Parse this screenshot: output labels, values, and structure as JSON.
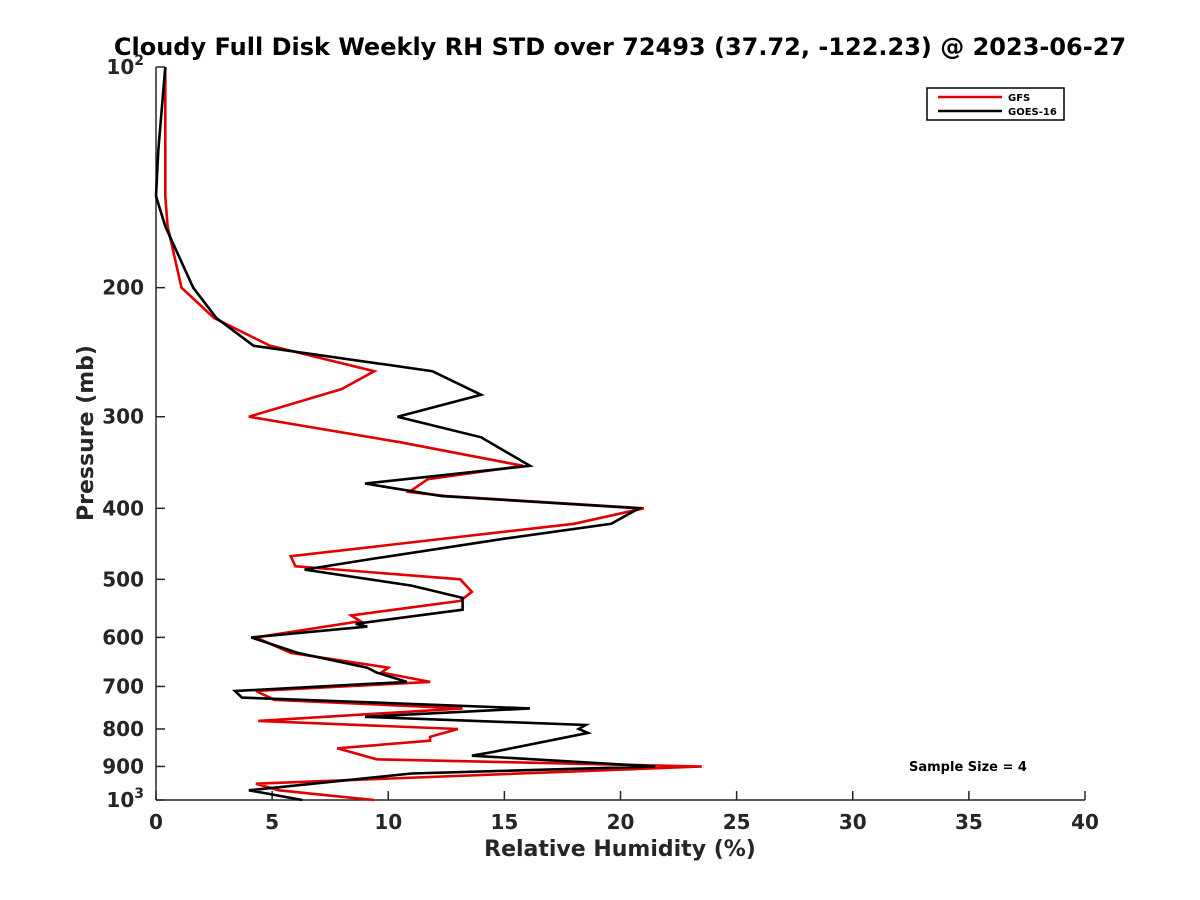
{
  "chart_data": {
    "type": "line",
    "title": "Cloudy Full Disk Weekly RH STD over 72493 (37.72, -122.23) @ 2023-06-27",
    "xlabel": "Relative Humidity (%)",
    "ylabel": "Pressure (mb)",
    "xlim": [
      0,
      40
    ],
    "ylim": [
      100,
      1000
    ],
    "y_scale": "log",
    "y_reversed": true,
    "x_ticks": [
      0,
      5,
      10,
      15,
      20,
      25,
      30,
      35,
      40
    ],
    "y_ticks": [
      {
        "value": 100,
        "base": "10",
        "exp": "2"
      },
      {
        "value": 200,
        "label": "200"
      },
      {
        "value": 300,
        "label": "300"
      },
      {
        "value": 400,
        "label": "400"
      },
      {
        "value": 500,
        "label": "500"
      },
      {
        "value": 600,
        "label": "600"
      },
      {
        "value": 700,
        "label": "700"
      },
      {
        "value": 800,
        "label": "800"
      },
      {
        "value": 900,
        "label": "900"
      },
      {
        "value": 1000,
        "base": "10",
        "exp": "3"
      }
    ],
    "grid": false,
    "legend_position": "top-right",
    "annotation": "Sample Size = 4",
    "series": [
      {
        "name": "GFS",
        "color": "#e00000",
        "points": [
          [
            0.4,
            100
          ],
          [
            0.4,
            130
          ],
          [
            0.4,
            150
          ],
          [
            0.5,
            165
          ],
          [
            1.1,
            200
          ],
          [
            2.5,
            220
          ],
          [
            4.9,
            240
          ],
          [
            9.4,
            260
          ],
          [
            8.0,
            275
          ],
          [
            4.0,
            300
          ],
          [
            10.5,
            325
          ],
          [
            15.8,
            350
          ],
          [
            11.7,
            365
          ],
          [
            10.9,
            380
          ],
          [
            12.5,
            385
          ],
          [
            21.0,
            400
          ],
          [
            18.0,
            420
          ],
          [
            5.8,
            465
          ],
          [
            6.0,
            480
          ],
          [
            13.1,
            500
          ],
          [
            13.6,
            520
          ],
          [
            13.1,
            535
          ],
          [
            8.4,
            560
          ],
          [
            8.8,
            570
          ],
          [
            4.3,
            600
          ],
          [
            5.8,
            630
          ],
          [
            10.0,
            660
          ],
          [
            9.7,
            670
          ],
          [
            11.8,
            690
          ],
          [
            4.3,
            710
          ],
          [
            5.1,
            730
          ],
          [
            13.2,
            750
          ],
          [
            4.4,
            780
          ],
          [
            13.0,
            800
          ],
          [
            11.8,
            820
          ],
          [
            11.8,
            830
          ],
          [
            7.8,
            850
          ],
          [
            9.5,
            880
          ],
          [
            23.5,
            900
          ],
          [
            4.3,
            950
          ],
          [
            5.3,
            970
          ],
          [
            8.0,
            990
          ],
          [
            9.4,
            1000
          ]
        ]
      },
      {
        "name": "GOES-16",
        "color": "#000000",
        "points": [
          [
            0.4,
            100
          ],
          [
            0.1,
            130
          ],
          [
            0.0,
            150
          ],
          [
            0.4,
            165
          ],
          [
            1.6,
            200
          ],
          [
            2.6,
            220
          ],
          [
            4.2,
            240
          ],
          [
            11.9,
            260
          ],
          [
            14.0,
            280
          ],
          [
            10.4,
            300
          ],
          [
            14.0,
            320
          ],
          [
            16.1,
            350
          ],
          [
            9.0,
            370
          ],
          [
            12.3,
            385
          ],
          [
            20.8,
            400
          ],
          [
            19.6,
            420
          ],
          [
            15.0,
            440
          ],
          [
            9.1,
            470
          ],
          [
            6.4,
            485
          ],
          [
            11.0,
            510
          ],
          [
            13.2,
            530
          ],
          [
            13.2,
            550
          ],
          [
            8.6,
            575
          ],
          [
            9.1,
            580
          ],
          [
            4.1,
            600
          ],
          [
            6.1,
            630
          ],
          [
            9.1,
            660
          ],
          [
            9.5,
            670
          ],
          [
            10.8,
            690
          ],
          [
            3.4,
            710
          ],
          [
            3.7,
            725
          ],
          [
            16.1,
            750
          ],
          [
            9.0,
            770
          ],
          [
            18.5,
            790
          ],
          [
            18.2,
            800
          ],
          [
            18.6,
            810
          ],
          [
            14.5,
            860
          ],
          [
            13.6,
            870
          ],
          [
            21.5,
            900
          ],
          [
            11.0,
            920
          ],
          [
            4.0,
            970
          ],
          [
            6.3,
            1000
          ]
        ]
      }
    ]
  }
}
